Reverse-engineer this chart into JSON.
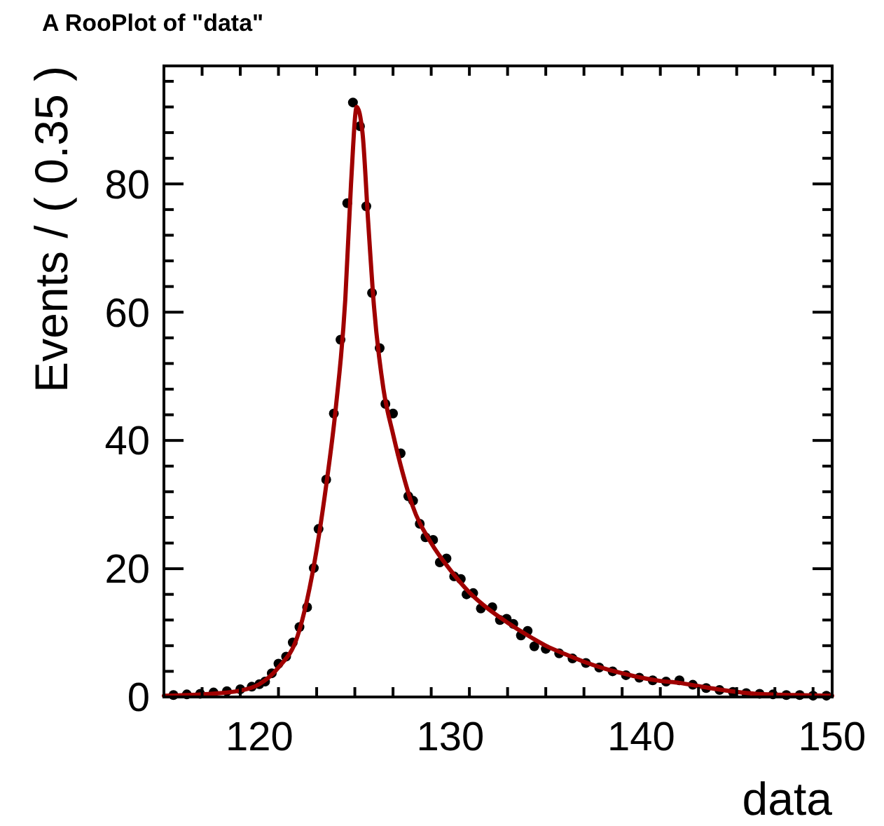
{
  "chart_data": {
    "type": "scatter",
    "title": "A RooPlot of \"data\"",
    "xlabel": "data",
    "ylabel": "Events / ( 0.35 )",
    "xlim": [
      115,
      150
    ],
    "ylim": [
      0,
      98.4
    ],
    "xticks": [
      120,
      130,
      140,
      150
    ],
    "yticks": [
      0,
      20,
      40,
      60,
      80
    ],
    "grid": false,
    "series": [
      {
        "marker": "circle",
        "color": "#000000",
        "x": [
          115.5,
          116.2,
          116.9,
          117.6,
          118.3,
          119.0,
          119.6,
          120.0,
          120.3,
          120.65,
          121.0,
          121.4,
          121.75,
          122.1,
          122.5,
          122.85,
          123.1,
          123.5,
          123.9,
          124.25,
          124.6,
          124.9,
          125.27,
          125.6,
          125.9,
          126.3,
          126.6,
          127.0,
          127.4,
          127.8,
          128.05,
          128.4,
          128.7,
          129.1,
          129.45,
          129.8,
          130.2,
          130.55,
          130.85,
          131.2,
          131.6,
          132.2,
          132.6,
          132.95,
          133.3,
          133.7,
          134.05,
          134.4,
          135.0,
          135.7,
          136.4,
          137.1,
          137.8,
          138.5,
          139.2,
          139.9,
          140.6,
          141.3,
          142.0,
          142.7,
          143.4,
          144.1,
          144.8,
          145.5,
          146.2,
          146.9,
          147.6,
          148.3,
          149.0,
          149.7
        ],
        "values": [
          0.3,
          0.4,
          0.5,
          0.7,
          0.9,
          1.2,
          1.6,
          2.0,
          2.4,
          3.7,
          5.2,
          6.3,
          8.5,
          10.9,
          14,
          20.1,
          26.2,
          33.9,
          44.2,
          55.7,
          77,
          92.7,
          89,
          76.5,
          63,
          54.4,
          45.7,
          44.2,
          38,
          31.3,
          30.6,
          27,
          24.9,
          24.5,
          21,
          21.6,
          18.8,
          18.4,
          16,
          16.2,
          13.8,
          14,
          12,
          12.2,
          11.4,
          9.6,
          10.3,
          7.9,
          7.5,
          6.8,
          6.0,
          5.3,
          4.6,
          4.0,
          3.4,
          3.0,
          2.6,
          2.4,
          2.6,
          1.9,
          1.4,
          1.1,
          0.8,
          0.6,
          0.5,
          0.4,
          0.3,
          0.3,
          0.2,
          0.2
        ]
      },
      {
        "type": "line",
        "color": "#a00000",
        "x": [
          115,
          117,
          119,
          120,
          121,
          122,
          123,
          123.5,
          124,
          124.5,
          124.8,
          125.1,
          125.4,
          125.7,
          126,
          126.5,
          127,
          127.5,
          128,
          129,
          130,
          131,
          132,
          133,
          134,
          135,
          136,
          137,
          138,
          139,
          140,
          141,
          142,
          143,
          144,
          145,
          146,
          148,
          150
        ],
        "values": [
          0.2,
          0.4,
          1.0,
          2.0,
          4.6,
          9.5,
          23,
          33,
          45,
          62,
          80,
          92,
          88,
          74,
          61,
          48,
          41,
          35,
          30,
          24,
          19.8,
          16.3,
          13.7,
          11.6,
          9.7,
          8.0,
          6.7,
          5.5,
          4.5,
          3.7,
          3.0,
          2.5,
          2.2,
          1.7,
          1.2,
          0.8,
          0.5,
          0.3,
          0.2
        ]
      }
    ]
  }
}
